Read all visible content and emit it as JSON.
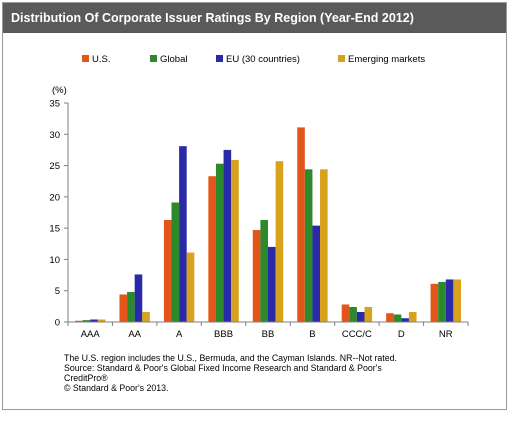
{
  "header": {
    "title": "Distribution  Of Corporate Issuer Ratings By Region (Year-End 2012)"
  },
  "chart_data": {
    "type": "bar",
    "title": "Distribution  Of Corporate Issuer Ratings By Region (Year-End 2012)",
    "ylabel": "(%)",
    "xlabel": "",
    "ylim": [
      0,
      35
    ],
    "yticks": [
      0,
      5,
      10,
      15,
      20,
      25,
      30,
      35
    ],
    "categories": [
      "AAA",
      "AA",
      "A",
      "BBB",
      "BB",
      "B",
      "CCC/C",
      "D",
      "NR"
    ],
    "series": [
      {
        "name": "U.S.",
        "color": "#e3551b",
        "values": [
          0.2,
          4.4,
          16.3,
          23.3,
          14.7,
          31.1,
          2.8,
          1.4,
          6.1
        ]
      },
      {
        "name": "Global",
        "color": "#2c8a2c",
        "values": [
          0.3,
          4.8,
          19.1,
          25.3,
          16.3,
          24.4,
          2.4,
          1.2,
          6.4
        ]
      },
      {
        "name": "EU (30 countries)",
        "color": "#2a2aa8",
        "values": [
          0.4,
          7.6,
          28.1,
          27.5,
          12.0,
          15.4,
          1.6,
          0.6,
          6.8
        ]
      },
      {
        "name": "Emerging markets",
        "color": "#d9a21c",
        "values": [
          0.4,
          1.6,
          11.1,
          25.9,
          25.7,
          24.4,
          2.4,
          1.6,
          6.8
        ]
      }
    ],
    "grid": false,
    "legend_position": "top"
  },
  "notes": {
    "line1": "The U.S. region includes the U.S., Bermuda, and the Cayman Islands. NR--Not  rated.",
    "line2": "Source: Standard & Poor's Global Fixed Income Research and Standard & Poor's",
    "line3": "CreditPro®",
    "line4": "© Standard & Poor's 2013."
  }
}
